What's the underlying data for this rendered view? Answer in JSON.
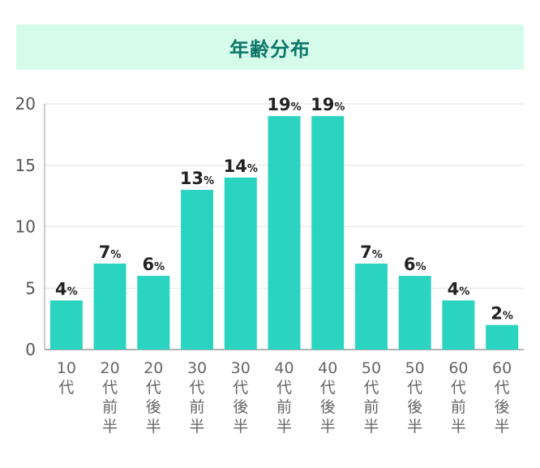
{
  "chart_data": {
    "type": "bar",
    "title": "年齢分布",
    "categories": [
      "10代",
      "20代前半",
      "20代後半",
      "30代前半",
      "30代後半",
      "40代前半",
      "40代後半",
      "50代前半",
      "50代後半",
      "60代前半",
      "60代後半"
    ],
    "values": [
      4,
      7,
      6,
      13,
      14,
      19,
      19,
      7,
      6,
      4,
      2
    ],
    "value_suffix": "%",
    "yticks": [
      0,
      5,
      10,
      15,
      20
    ],
    "ylim": [
      0,
      20
    ],
    "xlabel": "",
    "ylabel": "",
    "grid": true,
    "colors": {
      "bar": "#2bd4c0",
      "title_bg": "#d5fbeb",
      "title_text": "#0b7768"
    }
  }
}
